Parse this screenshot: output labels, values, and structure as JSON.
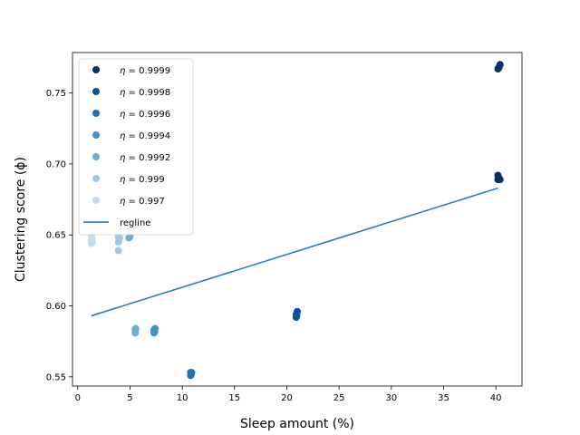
{
  "chart_data": {
    "type": "scatter",
    "title": "",
    "xlabel": "Sleep amount (%)",
    "ylabel": "Clustering score (ϕ)",
    "xlim": [
      -0.5,
      42.5
    ],
    "ylim": [
      0.5435,
      0.7785
    ],
    "xticks": [
      0,
      5,
      10,
      15,
      20,
      25,
      30,
      35,
      40
    ],
    "yticks": [
      0.55,
      0.6,
      0.65,
      0.7,
      0.75
    ],
    "ytick_labels": [
      "0.55",
      "0.60",
      "0.65",
      "0.70",
      "0.75"
    ],
    "grid": false,
    "legend_position": "upper-left",
    "series": [
      {
        "name": "η = 0.9999",
        "label_prefix": "η = ",
        "label_value": "0.9999",
        "color": "#08306b",
        "points": [
          [
            40.2,
            0.767
          ],
          [
            40.3,
            0.768
          ],
          [
            40.4,
            0.77
          ],
          [
            40.2,
            0.689
          ],
          [
            40.3,
            0.69
          ],
          [
            40.2,
            0.692
          ],
          [
            40.4,
            0.689
          ]
        ]
      },
      {
        "name": "η = 0.9998",
        "label_prefix": "η = ",
        "label_value": "0.9998",
        "color": "#08519c",
        "points": [
          [
            20.9,
            0.592
          ],
          [
            20.9,
            0.594
          ],
          [
            21.0,
            0.596
          ],
          [
            20.95,
            0.593
          ]
        ]
      },
      {
        "name": "η = 0.9996",
        "label_prefix": "η = ",
        "label_value": "0.9996",
        "color": "#2171b5",
        "points": [
          [
            10.8,
            0.551
          ],
          [
            10.8,
            0.553
          ],
          [
            10.85,
            0.552
          ],
          [
            10.9,
            0.553
          ]
        ]
      },
      {
        "name": "η = 0.9994",
        "label_prefix": "η = ",
        "label_value": "0.9994",
        "color": "#4292c6",
        "points": [
          [
            7.3,
            0.581
          ],
          [
            7.3,
            0.583
          ],
          [
            7.4,
            0.584
          ],
          [
            7.35,
            0.582
          ]
        ]
      },
      {
        "name": "η = 0.9992",
        "label_prefix": "η = ",
        "label_value": "0.9992",
        "color": "#6baed6",
        "points": [
          [
            5.5,
            0.581
          ],
          [
            5.5,
            0.583
          ],
          [
            5.55,
            0.584
          ],
          [
            4.9,
            0.648
          ],
          [
            5.0,
            0.649
          ]
        ]
      },
      {
        "name": "η = 0.999",
        "label_prefix": "η = ",
        "label_value": "0.999",
        "color": "#9ecae1",
        "points": [
          [
            3.9,
            0.639
          ],
          [
            3.9,
            0.645
          ],
          [
            3.95,
            0.647
          ],
          [
            4.0,
            0.648
          ],
          [
            3.9,
            0.649
          ]
        ]
      },
      {
        "name": "η = 0.997",
        "label_prefix": "η = ",
        "label_value": "0.997",
        "color": "#c6dbef",
        "points": [
          [
            1.3,
            0.644
          ],
          [
            1.3,
            0.646
          ],
          [
            1.35,
            0.648
          ],
          [
            1.3,
            0.65
          ],
          [
            1.4,
            0.645
          ]
        ]
      }
    ],
    "regline": {
      "name": "regline",
      "color": "#1f77b4",
      "x": [
        1.3,
        40.2
      ],
      "y": [
        0.593,
        0.683
      ]
    }
  }
}
